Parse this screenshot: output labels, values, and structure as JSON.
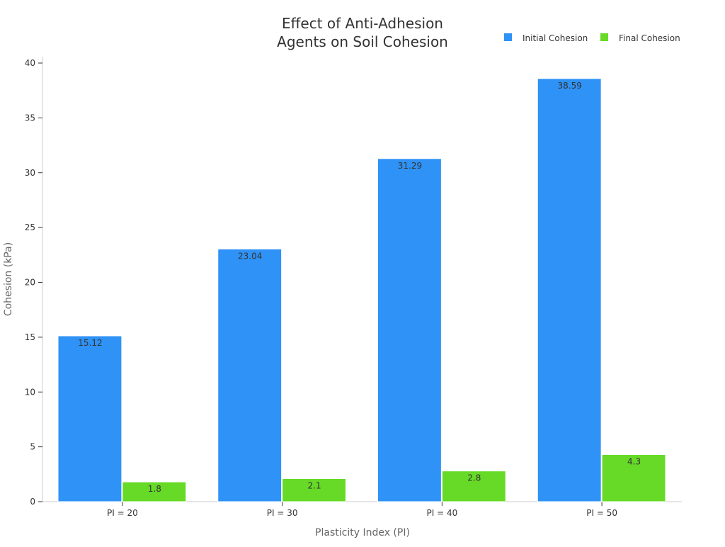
{
  "chart_data": {
    "type": "bar",
    "title_lines": [
      "Effect of Anti-Adhesion",
      "Agents on Soil Cohesion"
    ],
    "xlabel": "Plasticity Index (PI)",
    "ylabel": "Cohesion (kPa)",
    "categories": [
      "PI = 20",
      "PI = 30",
      "PI = 40",
      "PI = 50"
    ],
    "series": [
      {
        "name": "Initial Cohesion",
        "values": [
          15.12,
          23.04,
          31.29,
          38.59
        ],
        "color": "#2f92f6"
      },
      {
        "name": "Final Cohesion",
        "values": [
          1.8,
          2.1,
          2.8,
          4.3
        ],
        "color": "#66da26"
      }
    ],
    "ylim": [
      0,
      40
    ],
    "yticks": [
      0,
      5,
      10,
      15,
      20,
      25,
      30,
      35,
      40
    ],
    "grid": false,
    "legend": "top-right",
    "data_labels": true
  }
}
